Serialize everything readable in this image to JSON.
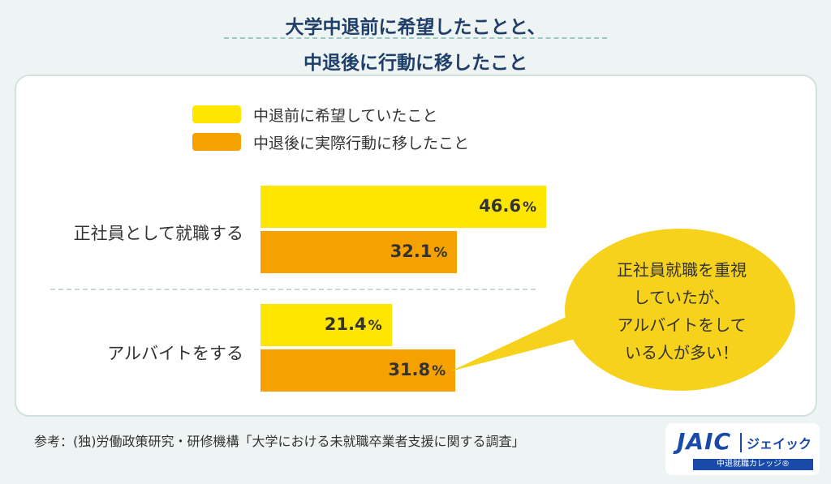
{
  "header": {
    "line1": "大学中退前に希望したことと、",
    "line2": "中退後に行動に移したこと"
  },
  "colors": {
    "series_before": "#ffe600",
    "series_after": "#f5a100",
    "callout": "#f7d21c",
    "title": "#1f3f6a"
  },
  "chart_data": {
    "type": "bar",
    "orientation": "horizontal",
    "categories": [
      "正社員として就職する",
      "アルバイトをする"
    ],
    "series": [
      {
        "name": "中退前に希望していたこと",
        "values": [
          46.6,
          21.4
        ]
      },
      {
        "name": "中退後に実際行動に移したこと",
        "values": [
          32.1,
          31.8
        ]
      }
    ],
    "unit": "%",
    "value_labels": [
      [
        "46.6",
        "21.4"
      ],
      [
        "32.1",
        "31.8"
      ]
    ],
    "legend_position": "top",
    "grid": false
  },
  "callout": {
    "lines": [
      "正社員就職を重視",
      "していたが、",
      "アルバイトをして",
      "いる人が多い！"
    ]
  },
  "source": "参考：(独)労働政策研究・研修機構「大学における未就職卒業者支援に関する調査」",
  "logo": {
    "mark": "JAIC",
    "name": "ジェイック",
    "sub": "中退就職カレッジ®"
  }
}
